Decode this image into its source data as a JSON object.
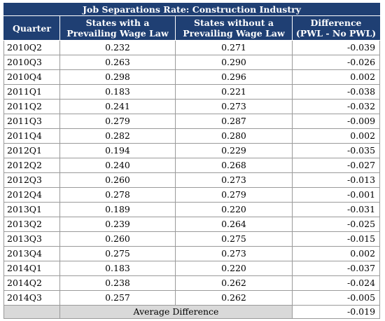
{
  "table": {
    "title": "Job Separations Rate: Construction Industry",
    "headers": {
      "quarter": "Quarter",
      "pwl_line1": "States with a",
      "pwl_line2": "Prevailing Wage Law",
      "nopwl_line1": "States without a",
      "nopwl_line2": "Prevailing Wage Law",
      "diff_line1": "Difference",
      "diff_line2": "(PWL - No PWL)"
    },
    "rows": [
      {
        "quarter": "2010Q2",
        "pwl": "0.232",
        "no_pwl": "0.271",
        "diff": "-0.039"
      },
      {
        "quarter": "2010Q3",
        "pwl": "0.263",
        "no_pwl": "0.290",
        "diff": "-0.026"
      },
      {
        "quarter": "2010Q4",
        "pwl": "0.298",
        "no_pwl": "0.296",
        "diff": "0.002"
      },
      {
        "quarter": "2011Q1",
        "pwl": "0.183",
        "no_pwl": "0.221",
        "diff": "-0.038"
      },
      {
        "quarter": "2011Q2",
        "pwl": "0.241",
        "no_pwl": "0.273",
        "diff": "-0.032"
      },
      {
        "quarter": "2011Q3",
        "pwl": "0.279",
        "no_pwl": "0.287",
        "diff": "-0.009"
      },
      {
        "quarter": "2011Q4",
        "pwl": "0.282",
        "no_pwl": "0.280",
        "diff": "0.002"
      },
      {
        "quarter": "2012Q1",
        "pwl": "0.194",
        "no_pwl": "0.229",
        "diff": "-0.035"
      },
      {
        "quarter": "2012Q2",
        "pwl": "0.240",
        "no_pwl": "0.268",
        "diff": "-0.027"
      },
      {
        "quarter": "2012Q3",
        "pwl": "0.260",
        "no_pwl": "0.273",
        "diff": "-0.013"
      },
      {
        "quarter": "2012Q4",
        "pwl": "0.278",
        "no_pwl": "0.279",
        "diff": "-0.001"
      },
      {
        "quarter": "2013Q1",
        "pwl": "0.189",
        "no_pwl": "0.220",
        "diff": "-0.031"
      },
      {
        "quarter": "2013Q2",
        "pwl": "0.239",
        "no_pwl": "0.264",
        "diff": "-0.025"
      },
      {
        "quarter": "2013Q3",
        "pwl": "0.260",
        "no_pwl": "0.275",
        "diff": "-0.015"
      },
      {
        "quarter": "2013Q4",
        "pwl": "0.275",
        "no_pwl": "0.273",
        "diff": "0.002"
      },
      {
        "quarter": "2014Q1",
        "pwl": "0.183",
        "no_pwl": "0.220",
        "diff": "-0.037"
      },
      {
        "quarter": "2014Q2",
        "pwl": "0.238",
        "no_pwl": "0.262",
        "diff": "-0.024"
      },
      {
        "quarter": "2014Q3",
        "pwl": "0.257",
        "no_pwl": "0.262",
        "diff": "-0.005"
      }
    ],
    "footer": {
      "label": "Average Difference",
      "value": "-0.019"
    },
    "colors": {
      "header_bg": "#1f3f73",
      "header_text": "#ffffff",
      "footer_bg": "#d9d9d9"
    }
  }
}
